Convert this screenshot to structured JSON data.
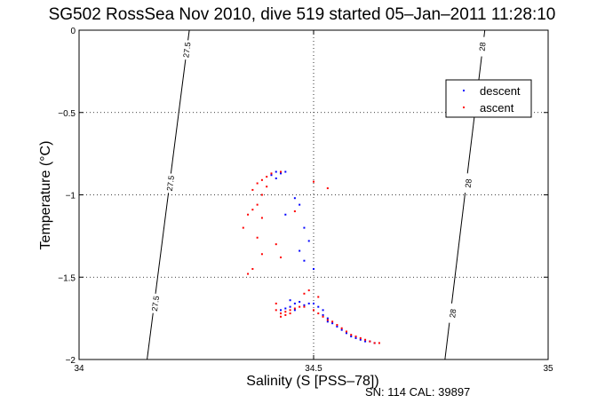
{
  "chart_data": {
    "type": "scatter",
    "title": "SG502 RossSea Nov 2010, dive 519 started 05–Jan–2011 11:28:10",
    "xlabel": "Salinity (S [PSS–78])",
    "ylabel": "Temperature (°C)",
    "xlim": [
      34,
      35
    ],
    "ylim": [
      -2,
      0
    ],
    "xticks": [
      {
        "value": 34,
        "label": "34"
      },
      {
        "value": 34.5,
        "label": "34.5"
      },
      {
        "value": 35,
        "label": "35"
      }
    ],
    "yticks": [
      {
        "value": 0,
        "label": "0"
      },
      {
        "value": -0.5,
        "label": "−0.5"
      },
      {
        "value": -1,
        "label": "−1"
      },
      {
        "value": -1.5,
        "label": "−1.5"
      },
      {
        "value": -2,
        "label": "−2"
      }
    ],
    "grid": true,
    "legend_position": "top-right",
    "footer": "SN: 114  CAL: 39897",
    "density_contours": [
      {
        "label": "27.5",
        "points": [
          [
            34.235,
            0
          ],
          [
            34.145,
            -2
          ]
        ],
        "label_positions": [
          [
            34.23,
            -0.12
          ],
          [
            34.195,
            -0.93
          ],
          [
            34.163,
            -1.66
          ]
        ]
      },
      {
        "label": "28",
        "points": [
          [
            34.865,
            0
          ],
          [
            34.78,
            -2
          ]
        ],
        "label_positions": [
          [
            34.86,
            -0.1
          ],
          [
            34.83,
            -0.93
          ],
          [
            34.797,
            -1.72
          ]
        ]
      }
    ],
    "series": [
      {
        "name": "descent",
        "color": "#0000ff",
        "points": [
          [
            34.42,
            -0.86
          ],
          [
            34.43,
            -0.87
          ],
          [
            34.41,
            -0.88
          ],
          [
            34.44,
            -0.86
          ],
          [
            34.42,
            -0.9
          ],
          [
            34.46,
            -1.02
          ],
          [
            34.47,
            -1.06
          ],
          [
            34.44,
            -1.12
          ],
          [
            34.48,
            -1.2
          ],
          [
            34.49,
            -1.28
          ],
          [
            34.47,
            -1.34
          ],
          [
            34.48,
            -1.4
          ],
          [
            34.5,
            -1.45
          ],
          [
            34.45,
            -1.64
          ],
          [
            34.46,
            -1.66
          ],
          [
            34.47,
            -1.65
          ],
          [
            34.48,
            -1.67
          ],
          [
            34.49,
            -1.66
          ],
          [
            34.45,
            -1.68
          ],
          [
            34.46,
            -1.7
          ],
          [
            34.44,
            -1.69
          ],
          [
            34.43,
            -1.7
          ],
          [
            34.5,
            -1.66
          ],
          [
            34.51,
            -1.68
          ],
          [
            34.52,
            -1.7
          ],
          [
            34.52,
            -1.73
          ],
          [
            34.53,
            -1.75
          ],
          [
            34.53,
            -1.77
          ],
          [
            34.54,
            -1.78
          ],
          [
            34.55,
            -1.8
          ],
          [
            34.56,
            -1.82
          ],
          [
            34.57,
            -1.84
          ],
          [
            34.58,
            -1.86
          ],
          [
            34.59,
            -1.87
          ],
          [
            34.6,
            -1.88
          ],
          [
            34.61,
            -1.89
          ],
          [
            34.62,
            -1.89
          ],
          [
            34.63,
            -1.9
          ]
        ]
      },
      {
        "name": "ascent",
        "color": "#ff0000",
        "points": [
          [
            34.41,
            -0.87
          ],
          [
            34.4,
            -0.89
          ],
          [
            34.39,
            -0.91
          ],
          [
            34.38,
            -0.93
          ],
          [
            34.4,
            -0.95
          ],
          [
            34.37,
            -0.97
          ],
          [
            34.43,
            -0.86
          ],
          [
            34.5,
            -0.92
          ],
          [
            34.53,
            -0.96
          ],
          [
            34.39,
            -1.0
          ],
          [
            34.38,
            -1.06
          ],
          [
            34.37,
            -1.09
          ],
          [
            34.36,
            -1.12
          ],
          [
            34.46,
            -1.1
          ],
          [
            34.39,
            -1.14
          ],
          [
            34.35,
            -1.2
          ],
          [
            34.38,
            -1.26
          ],
          [
            34.42,
            -1.3
          ],
          [
            34.39,
            -1.36
          ],
          [
            34.37,
            -1.45
          ],
          [
            34.36,
            -1.48
          ],
          [
            34.43,
            -1.38
          ],
          [
            34.49,
            -1.58
          ],
          [
            34.48,
            -1.6
          ],
          [
            34.51,
            -1.62
          ],
          [
            34.42,
            -1.66
          ],
          [
            34.42,
            -1.7
          ],
          [
            34.43,
            -1.72
          ],
          [
            34.44,
            -1.71
          ],
          [
            34.45,
            -1.7
          ],
          [
            34.46,
            -1.69
          ],
          [
            34.47,
            -1.68
          ],
          [
            34.48,
            -1.68
          ],
          [
            34.44,
            -1.73
          ],
          [
            34.43,
            -1.74
          ],
          [
            34.45,
            -1.72
          ],
          [
            34.5,
            -1.7
          ],
          [
            34.51,
            -1.72
          ],
          [
            34.52,
            -1.74
          ],
          [
            34.53,
            -1.76
          ],
          [
            34.54,
            -1.77
          ],
          [
            34.55,
            -1.79
          ],
          [
            34.56,
            -1.81
          ],
          [
            34.57,
            -1.83
          ],
          [
            34.58,
            -1.85
          ],
          [
            34.59,
            -1.86
          ],
          [
            34.6,
            -1.87
          ],
          [
            34.61,
            -1.88
          ],
          [
            34.62,
            -1.89
          ],
          [
            34.63,
            -1.9
          ],
          [
            34.64,
            -1.9
          ]
        ]
      }
    ]
  }
}
